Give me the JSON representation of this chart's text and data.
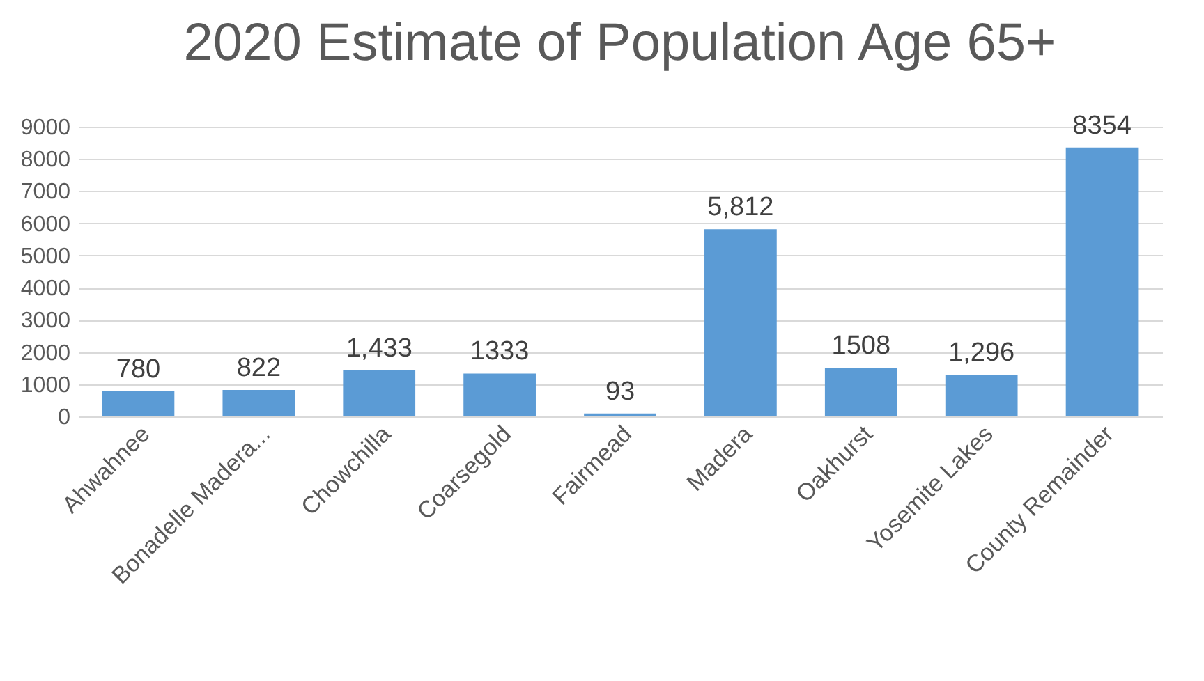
{
  "chart_data": {
    "type": "bar",
    "title": "2020 Estimate of Population Age 65+",
    "categories": [
      "Ahwahnee",
      "Bonadelle Madera...",
      "Chowchilla",
      "Coarsegold",
      "Fairmead",
      "Madera",
      "Oakhurst",
      "Yosemite Lakes",
      "County Remainder"
    ],
    "values": [
      780,
      822,
      1433,
      1333,
      93,
      5812,
      1508,
      1296,
      8354
    ],
    "value_labels": [
      "780",
      "822",
      "1,433",
      "1333",
      "93",
      "5,812",
      "1508",
      "1,296",
      "8354"
    ],
    "color": "#5b9bd5",
    "ylim": [
      0,
      9000
    ],
    "yticks": [
      0,
      1000,
      2000,
      3000,
      4000,
      5000,
      6000,
      7000,
      8000,
      9000
    ],
    "grid": "y"
  }
}
